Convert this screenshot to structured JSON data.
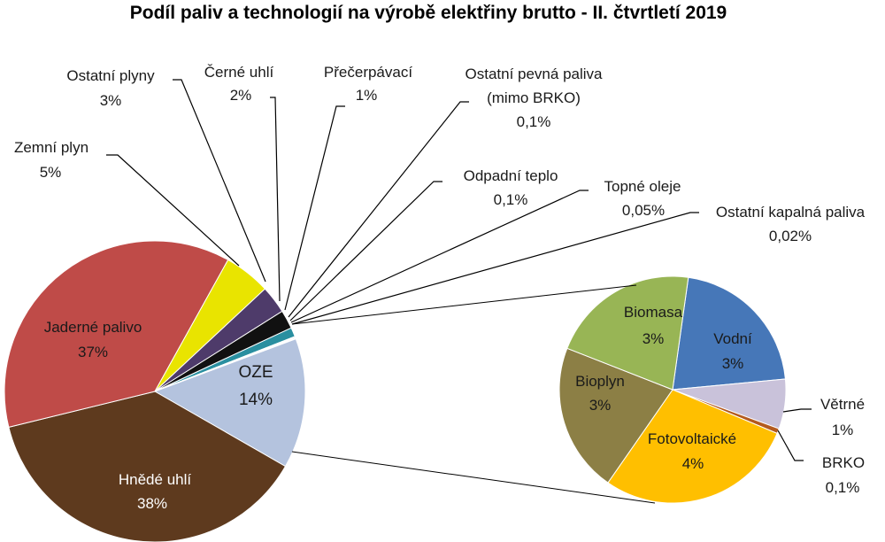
{
  "chart_data": [
    {
      "type": "pie",
      "title": "Podíl paliv a technologií na výrobě elektřiny brutto - II. čtvrtletí 2019",
      "slices": [
        {
          "name": "OZE",
          "value_label": "14%",
          "value": 14,
          "color": "#b4c3de"
        },
        {
          "name": "Hnědé uhlí",
          "value_label": "38%",
          "value": 38,
          "color": "#5e3a1e"
        },
        {
          "name": "Jaderné palivo",
          "value_label": "37%",
          "value": 37,
          "color": "#bf4b48"
        },
        {
          "name": "Zemní plyn",
          "value_label": "5%",
          "value": 5,
          "color": "#e9e400"
        },
        {
          "name": "Ostatní plyny",
          "value_label": "3%",
          "value": 3,
          "color": "#4e3b6a"
        },
        {
          "name": "Černé uhlí",
          "value_label": "2%",
          "value": 2,
          "color": "#111111"
        },
        {
          "name": "Přečerpávací",
          "value_label": "1%",
          "value": 1,
          "color": "#2a8fa0"
        },
        {
          "name": "Ostatní pevná paliva (mimo BRKO)",
          "value_label": "0,1%",
          "value": 0.1,
          "color": "#7a7a7a"
        },
        {
          "name": "Odpadní teplo",
          "value_label": "0,1%",
          "value": 0.1,
          "color": "#9a9a9a"
        },
        {
          "name": "Topné oleje",
          "value_label": "0,05%",
          "value": 0.05,
          "color": "#6a6a6a"
        },
        {
          "name": "Ostatní kapalná paliva",
          "value_label": "0,02%",
          "value": 0.02,
          "color": "#555555"
        }
      ]
    },
    {
      "type": "pie",
      "title": "",
      "detail_of": "OZE",
      "slices": [
        {
          "name": "Vodní",
          "value_label": "3%",
          "value": 3,
          "color": "#4677b8"
        },
        {
          "name": "Větrné",
          "value_label": "1%",
          "value": 1,
          "color": "#c9c2da"
        },
        {
          "name": "BRKO",
          "value_label": "0,1%",
          "value": 0.1,
          "color": "#b35a1e"
        },
        {
          "name": "Fotovoltaické",
          "value_label": "4%",
          "value": 4,
          "color": "#ffbf00"
        },
        {
          "name": "Bioplyn",
          "value_label": "3%",
          "value": 3,
          "color": "#8c7f45"
        },
        {
          "name": "Biomasa",
          "value_label": "3%",
          "value": 3,
          "color": "#98b555"
        }
      ]
    }
  ]
}
